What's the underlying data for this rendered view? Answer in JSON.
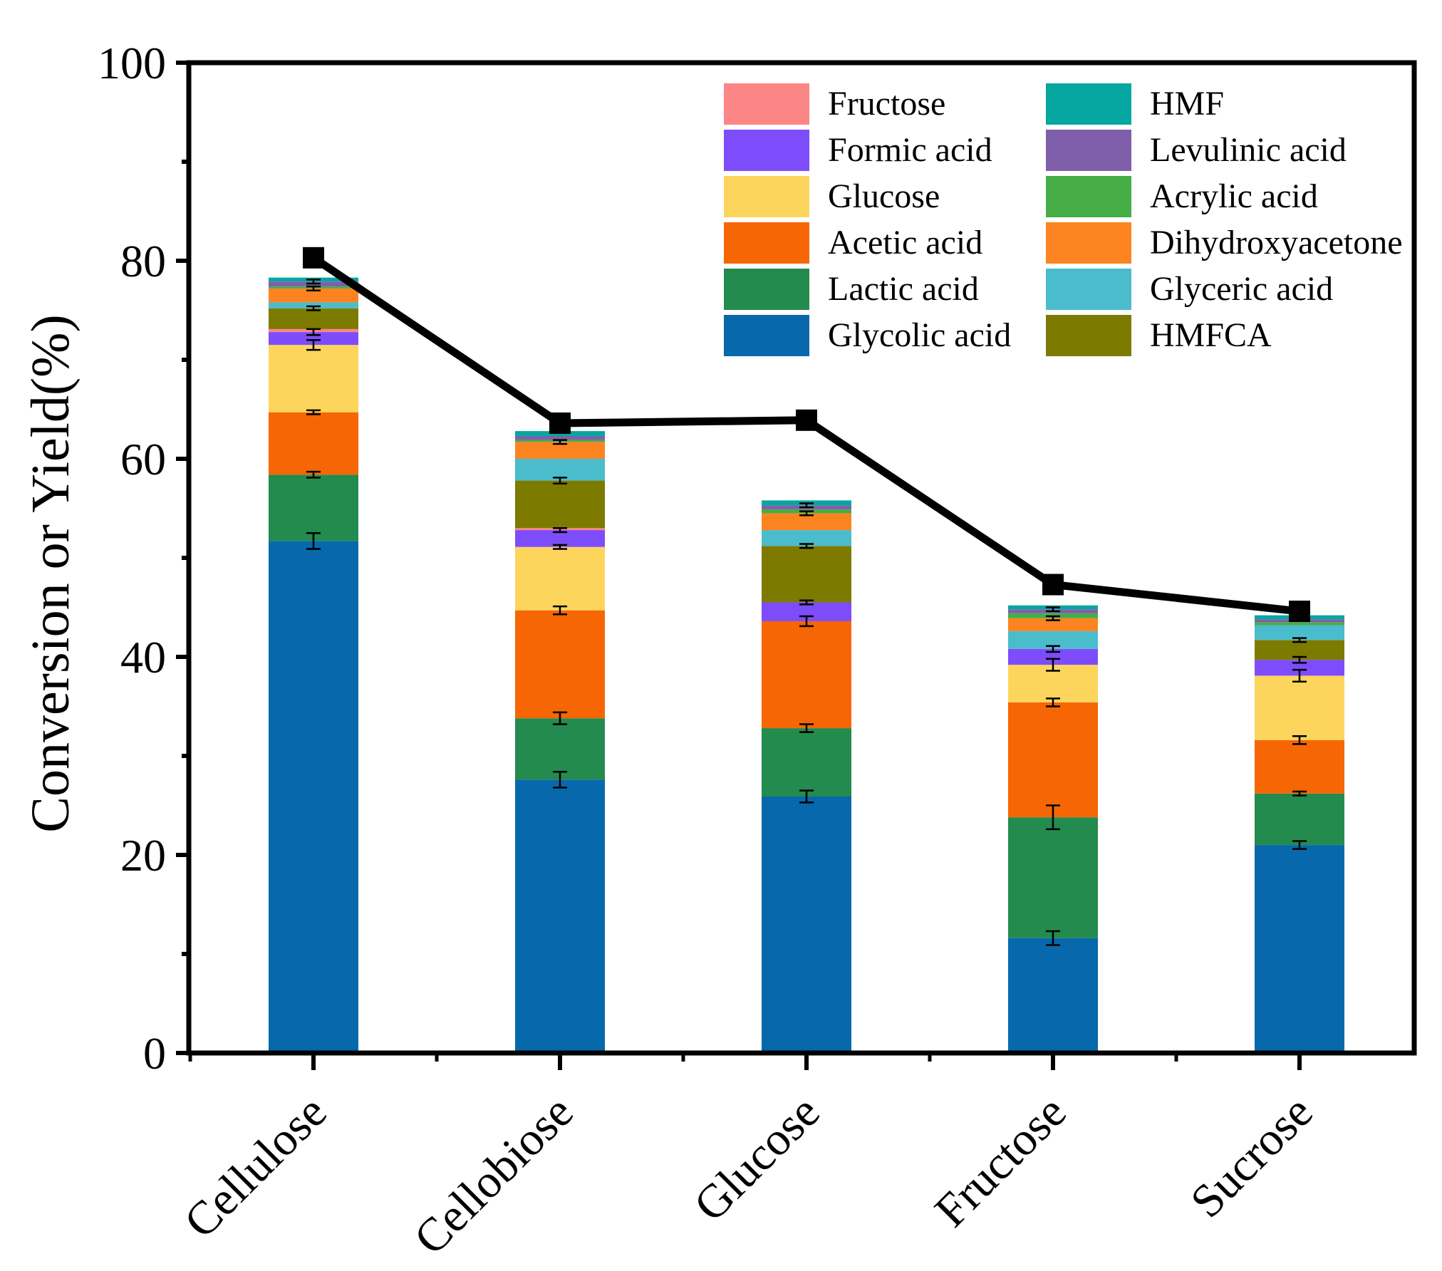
{
  "chart_data": {
    "type": "bar",
    "stacked": true,
    "title": "",
    "xlabel": "",
    "ylabel": "Conversion or Yield(%)",
    "ylim": [
      0,
      100
    ],
    "yticks": [
      "0",
      "20",
      "40",
      "60",
      "80",
      "100"
    ],
    "categories": [
      "Cellulose",
      "Cellobiose",
      "Glucose",
      "Fructose",
      "Sucrose"
    ],
    "series": [
      {
        "name": "Glycolic acid",
        "color": "#0868ac",
        "values": [
          51.7,
          27.6,
          25.9,
          11.6,
          21.0
        ],
        "errors": [
          0.8,
          0.8,
          0.6,
          0.7,
          0.4
        ]
      },
      {
        "name": "Lactic acid",
        "color": "#238b4e",
        "values": [
          6.7,
          6.2,
          6.9,
          12.2,
          5.2
        ],
        "errors": [
          0.3,
          0.6,
          0.4,
          1.2,
          0.2
        ]
      },
      {
        "name": "Acetic acid",
        "color": "#f66604",
        "values": [
          6.3,
          10.9,
          10.8,
          11.6,
          5.4
        ],
        "errors": [
          0.2,
          0.4,
          0.5,
          0.4,
          0.4
        ]
      },
      {
        "name": "Glucose",
        "color": "#fdd55c",
        "values": [
          6.8,
          6.4,
          0.0,
          3.8,
          6.5
        ],
        "errors": [
          0.5,
          0.2,
          0.0,
          0.6,
          0.6
        ]
      },
      {
        "name": "Formic acid",
        "color": "#7d4cfb",
        "values": [
          1.3,
          1.7,
          1.9,
          1.6,
          1.6
        ],
        "errors": [
          0.3,
          0.2,
          0.2,
          0.3,
          0.3
        ]
      },
      {
        "name": "Fructose",
        "color": "#fc8585",
        "values": [
          0.3,
          0.2,
          0.0,
          0.0,
          0.0
        ],
        "errors": [
          0,
          0,
          0,
          0,
          0
        ]
      },
      {
        "name": "HMFCA",
        "color": "#7d7a00",
        "values": [
          2.1,
          4.8,
          5.7,
          0.0,
          2.0
        ],
        "errors": [
          0.2,
          0.3,
          0.2,
          0.0,
          0.2
        ]
      },
      {
        "name": "Glyceric acid",
        "color": "#4bbccc",
        "values": [
          0.6,
          2.2,
          1.6,
          1.8,
          1.5
        ],
        "errors": [
          0,
          0,
          0,
          0,
          0
        ]
      },
      {
        "name": "Dihydroxyacetone",
        "color": "#fc8420",
        "values": [
          1.4,
          1.7,
          1.7,
          1.3,
          0.0
        ],
        "errors": [
          0.2,
          0.2,
          0.2,
          0.2,
          0
        ]
      },
      {
        "name": "Acrylic acid",
        "color": "#47ad46",
        "values": [
          0.2,
          0.2,
          0.4,
          0.5,
          0.3
        ],
        "errors": [
          0,
          0,
          0,
          0,
          0
        ]
      },
      {
        "name": "Levulinic acid",
        "color": "#7f5faa",
        "values": [
          0.5,
          0.4,
          0.4,
          0.4,
          0.3
        ],
        "errors": [
          0.2,
          0,
          0.2,
          0.2,
          0
        ]
      },
      {
        "name": "HMF",
        "color": "#06a7a0",
        "values": [
          0.4,
          0.5,
          0.5,
          0.4,
          0.4
        ],
        "errors": [
          0,
          0,
          0,
          0,
          0
        ]
      }
    ],
    "line": {
      "name": "Conversion",
      "color": "#000000",
      "values": [
        80.3,
        63.6,
        63.9,
        47.3,
        44.6
      ]
    },
    "legend": {
      "placement": "top-right",
      "columns": [
        [
          "Fructose",
          "Formic acid",
          "Glucose",
          "Acetic acid",
          "Lactic acid",
          "Glycolic acid"
        ],
        [
          "HMF",
          "Levulinic acid",
          "Acrylic acid",
          "Dihydroxyacetone",
          "Glyceric acid",
          "HMFCA"
        ]
      ]
    }
  }
}
